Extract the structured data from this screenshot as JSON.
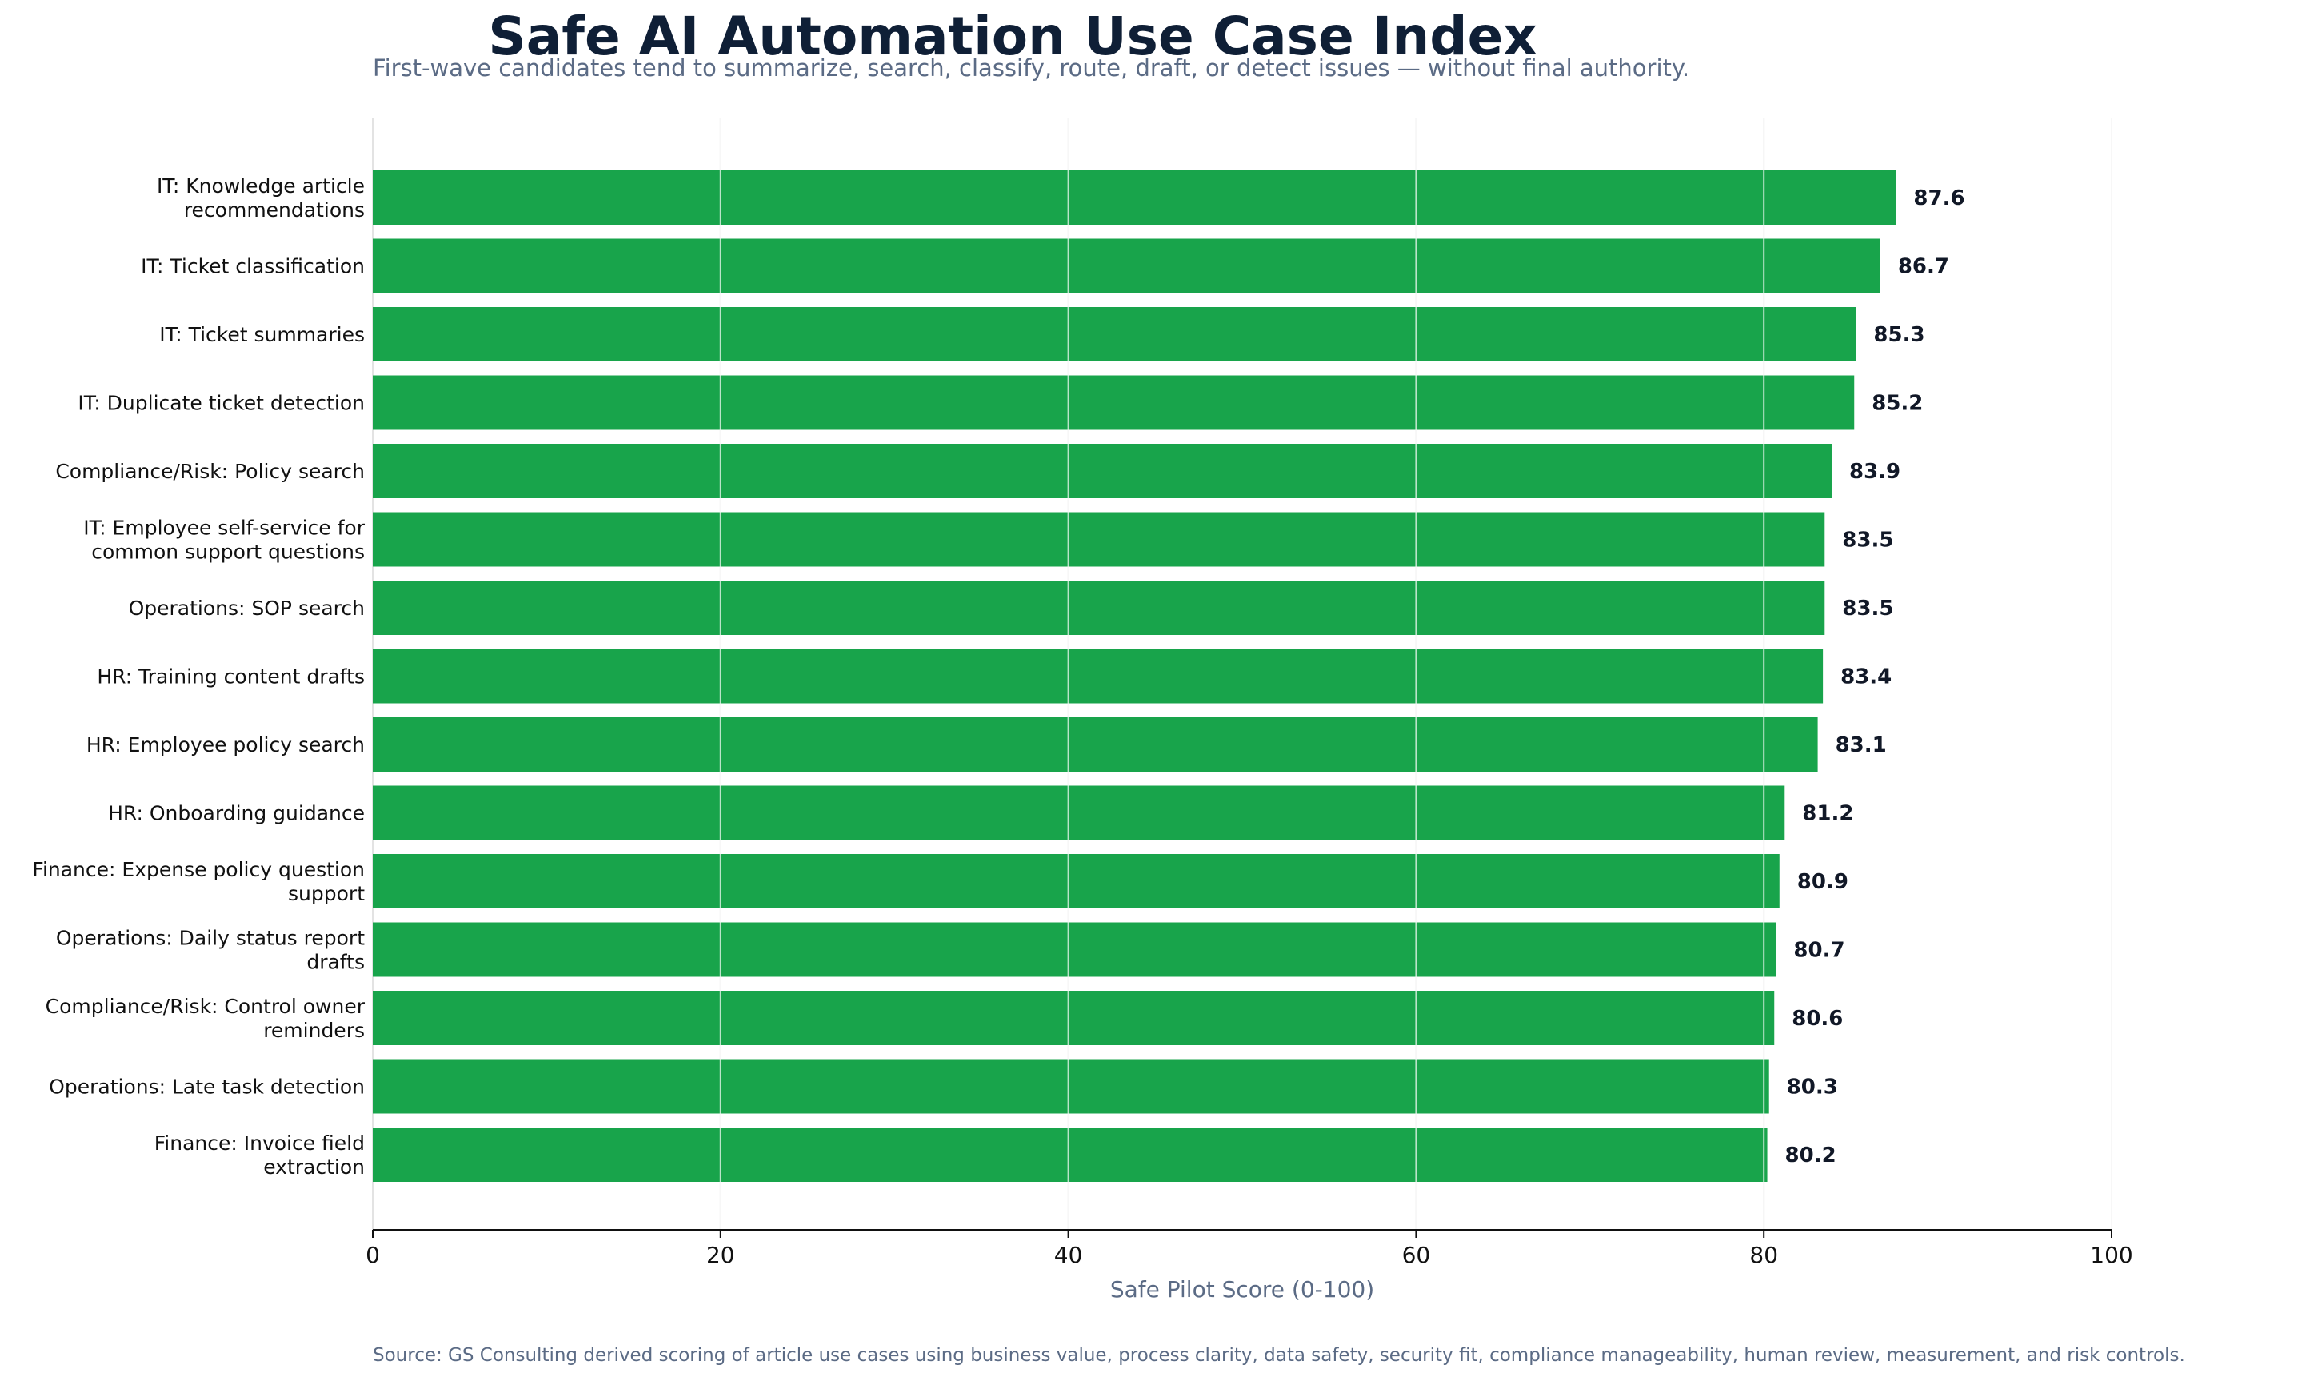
{
  "chart_data": {
    "type": "bar",
    "orientation": "horizontal",
    "title": "Safe AI Automation Use Case Index",
    "subtitle": "First-wave candidates tend to summarize, search, classify, route, draft, or detect issues — without final authority.",
    "xlabel": "Safe Pilot Score (0-100)",
    "ylabel": "",
    "xlim": [
      0,
      100
    ],
    "xticks": [
      0,
      20,
      40,
      60,
      80,
      100
    ],
    "grid": "vertical",
    "bar_color": "#18a44b",
    "categories": [
      [
        "IT: Knowledge article",
        "recommendations"
      ],
      [
        "IT: Ticket classification"
      ],
      [
        "IT: Ticket summaries"
      ],
      [
        "IT: Duplicate ticket detection"
      ],
      [
        "Compliance/Risk: Policy search"
      ],
      [
        "IT: Employee self-service for",
        "common support questions"
      ],
      [
        "Operations: SOP search"
      ],
      [
        "HR: Training content drafts"
      ],
      [
        "HR: Employee policy search"
      ],
      [
        "HR: Onboarding guidance"
      ],
      [
        "Finance: Expense policy question",
        "support"
      ],
      [
        "Operations: Daily status report",
        "drafts"
      ],
      [
        "Compliance/Risk: Control owner",
        "reminders"
      ],
      [
        "Operations: Late task detection"
      ],
      [
        "Finance: Invoice field",
        "extraction"
      ]
    ],
    "values": [
      87.6,
      86.7,
      85.3,
      85.2,
      83.9,
      83.5,
      83.5,
      83.4,
      83.1,
      81.2,
      80.9,
      80.7,
      80.6,
      80.3,
      80.2
    ],
    "value_labels": [
      "87.6",
      "86.7",
      "85.3",
      "85.2",
      "83.9",
      "83.5",
      "83.5",
      "83.4",
      "83.1",
      "81.2",
      "80.9",
      "80.7",
      "80.6",
      "80.3",
      "80.2"
    ],
    "source": "Source: GS Consulting derived scoring of article use cases using business value, process clarity, data safety, security fit, compliance manageability, human review, measurement, and risk controls."
  }
}
